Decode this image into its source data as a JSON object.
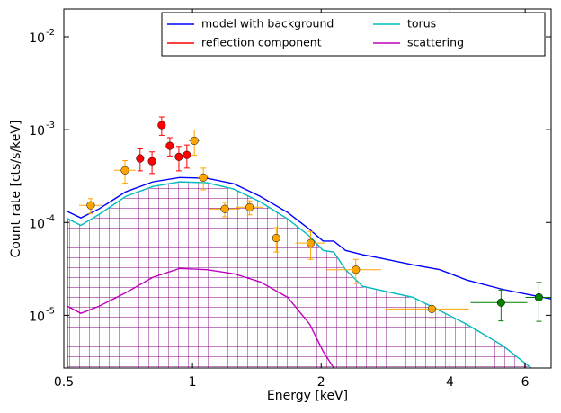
{
  "chart_data": {
    "type": "line",
    "xlabel": "Energy [keV]",
    "ylabel": "Count rate [cts/s/keV]",
    "xscale": "log",
    "yscale": "log",
    "xlim": [
      0.5,
      6.9
    ],
    "ylim": [
      2.7e-06,
      0.02
    ],
    "xticks": [
      0.5,
      1,
      2,
      4,
      6
    ],
    "yticks": [
      {
        "value": 1e-05,
        "label": "10",
        "sup": "-5"
      },
      {
        "value": 0.0001,
        "label": "10",
        "sup": "-4"
      },
      {
        "value": 0.001,
        "label": "10",
        "sup": "-3"
      },
      {
        "value": 0.01,
        "label": "10",
        "sup": "-2"
      }
    ],
    "legend": "upper right",
    "x": [
      0.51,
      0.548,
      0.604,
      0.698,
      0.807,
      0.933,
      1.08,
      1.25,
      1.44,
      1.67,
      1.88,
      2.02,
      2.14,
      2.28,
      2.5,
      2.7,
      3.28,
      3.79,
      4.38,
      5.32,
      6.2,
      6.9
    ],
    "series": [
      {
        "name": "model with background",
        "color": "#0000ff",
        "values": [
          0.000131,
          0.000112,
          0.00014,
          0.000214,
          0.000274,
          0.000305,
          0.0003,
          0.000261,
          0.000191,
          0.000128,
          8.4e-05,
          6.3e-05,
          6.3e-05,
          5e-05,
          4.5e-05,
          4.2e-05,
          3.5e-05,
          3.1e-05,
          2.4e-05,
          1.9e-05,
          1.65e-05,
          1.5e-05
        ]
      },
      {
        "name": "torus",
        "color": "#00bfbf",
        "hatch": "#800080",
        "values": [
          0.00011,
          9.3e-05,
          0.000122,
          0.000191,
          0.000244,
          0.000274,
          0.000268,
          0.000229,
          0.000167,
          0.000109,
          7.1e-05,
          5e-05,
          4.8e-05,
          3.1e-05,
          2.05e-05,
          1.9e-05,
          1.56e-05,
          1.12e-05,
          8e-06,
          4.7e-06,
          2.7e-06,
          null
        ]
      },
      {
        "name": "reflection component",
        "color": "#ff0000"
      },
      {
        "name": "scattering",
        "color": "#bf00bf",
        "values": [
          1.25e-05,
          1.05e-05,
          1.25e-05,
          1.75e-05,
          2.56e-05,
          3.2e-05,
          3.1e-05,
          2.8e-05,
          2.29e-05,
          1.56e-05,
          8e-06,
          4.1e-06,
          2.7e-06,
          null,
          null,
          null,
          null,
          null,
          null,
          null,
          null,
          null
        ]
      }
    ],
    "points": [
      {
        "color": "#ffa500",
        "x": [
          0.578,
          0.695,
          1.01,
          1.06,
          1.19,
          1.36,
          1.57,
          1.89,
          2.41,
          3.63
        ],
        "y": [
          0.000153,
          0.000365,
          0.00076,
          0.000305,
          0.00014,
          0.000146,
          6.8e-05,
          6e-05,
          3.1e-05,
          1.17e-05
        ],
        "xerr": [
          0.035,
          0.04,
          0.03,
          0.03,
          0.1,
          0.1,
          0.15,
          0.15,
          0.35,
          0.8
        ],
        "yerr": [
          2.8e-05,
          0.0001,
          0.00023,
          8e-05,
          2.5e-05,
          2.5e-05,
          2e-05,
          2e-05,
          9e-06,
          2.5e-06
        ]
      },
      {
        "color": "#ff0000",
        "x": [
          0.754,
          0.804,
          0.847,
          0.885,
          0.929,
          0.97
        ],
        "y": [
          0.00049,
          0.000457,
          0.00112,
          0.00067,
          0.00051,
          0.000535
        ],
        "yerr": [
          0.00013,
          0.00012,
          0.00025,
          0.00015,
          0.00015,
          0.00015
        ]
      },
      {
        "color": "#008000",
        "x": [
          5.27,
          6.46
        ],
        "y": [
          1.37e-05,
          1.56e-05
        ],
        "xerr": [
          0.8,
          0.45
        ],
        "yerr": [
          5e-06,
          7e-06
        ]
      }
    ]
  }
}
